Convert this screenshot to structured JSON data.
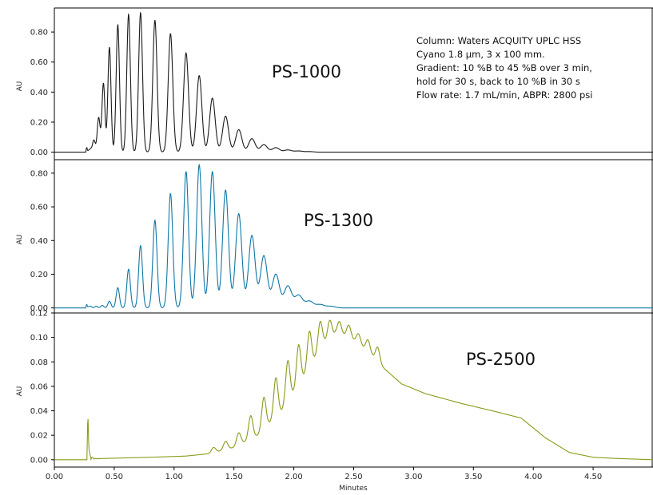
{
  "chart_data": [
    {
      "type": "line",
      "label": "PS-1000",
      "ylabel": "AU",
      "ylim": [
        -0.05,
        0.96
      ],
      "yticks": [
        0,
        0.2,
        0.4,
        0.6,
        0.8
      ],
      "ytick_labels": [
        "0.00",
        "0.20",
        "0.40",
        "0.60",
        "0.80"
      ],
      "color": "#1a1a1a",
      "injection_spike": {
        "x": 0.27,
        "y": 0.03
      },
      "peaks": [
        {
          "x": 0.3,
          "y": 0.02
        },
        {
          "x": 0.33,
          "y": 0.08
        },
        {
          "x": 0.37,
          "y": 0.23
        },
        {
          "x": 0.41,
          "y": 0.46
        },
        {
          "x": 0.46,
          "y": 0.7
        },
        {
          "x": 0.53,
          "y": 0.85
        },
        {
          "x": 0.62,
          "y": 0.92
        },
        {
          "x": 0.72,
          "y": 0.93
        },
        {
          "x": 0.84,
          "y": 0.88
        },
        {
          "x": 0.97,
          "y": 0.79
        },
        {
          "x": 1.1,
          "y": 0.66
        },
        {
          "x": 1.21,
          "y": 0.51
        },
        {
          "x": 1.32,
          "y": 0.36
        },
        {
          "x": 1.43,
          "y": 0.24
        },
        {
          "x": 1.54,
          "y": 0.15
        },
        {
          "x": 1.65,
          "y": 0.09
        },
        {
          "x": 1.75,
          "y": 0.05
        },
        {
          "x": 1.85,
          "y": 0.03
        },
        {
          "x": 1.95,
          "y": 0.015
        },
        {
          "x": 2.04,
          "y": 0.008
        },
        {
          "x": 2.13,
          "y": 0.004
        }
      ],
      "notes": [
        "Column: Waters ACQUITY UPLC HSS",
        "Cyano 1.8 µm, 3 x 100 mm.",
        "Gradient: 10 %B to 45 %B over 3 min,",
        "hold for 30 s, back to 10 %B in 30 s",
        "Flow rate: 1.7 mL/min, ABPR: 2800 psi"
      ]
    },
    {
      "type": "line",
      "label": "PS-1300",
      "ylabel": "AU",
      "ylim": [
        -0.03,
        0.88
      ],
      "yticks": [
        0,
        0.2,
        0.4,
        0.6,
        0.8
      ],
      "ytick_labels": [
        "0.00",
        "0.20",
        "0.40",
        "0.60",
        "0.80"
      ],
      "color": "#0e77a6",
      "injection_spike": {
        "x": 0.27,
        "y": 0.02
      },
      "peaks": [
        {
          "x": 0.3,
          "y": 0.01
        },
        {
          "x": 0.35,
          "y": 0.01
        },
        {
          "x": 0.4,
          "y": 0.015
        },
        {
          "x": 0.46,
          "y": 0.04
        },
        {
          "x": 0.53,
          "y": 0.12
        },
        {
          "x": 0.62,
          "y": 0.23
        },
        {
          "x": 0.72,
          "y": 0.37
        },
        {
          "x": 0.84,
          "y": 0.52
        },
        {
          "x": 0.97,
          "y": 0.68
        },
        {
          "x": 1.1,
          "y": 0.81
        },
        {
          "x": 1.21,
          "y": 0.85
        },
        {
          "x": 1.32,
          "y": 0.81
        },
        {
          "x": 1.43,
          "y": 0.7
        },
        {
          "x": 1.54,
          "y": 0.56
        },
        {
          "x": 1.65,
          "y": 0.43
        },
        {
          "x": 1.75,
          "y": 0.31
        },
        {
          "x": 1.85,
          "y": 0.2
        },
        {
          "x": 1.95,
          "y": 0.13
        },
        {
          "x": 2.04,
          "y": 0.075
        },
        {
          "x": 2.13,
          "y": 0.04
        },
        {
          "x": 2.22,
          "y": 0.02
        },
        {
          "x": 2.31,
          "y": 0.01
        }
      ]
    },
    {
      "type": "line",
      "label": "PS-2500",
      "ylabel": "AU",
      "xlabel": "Minutes",
      "ylim": [
        -0.006,
        0.12
      ],
      "xlim": [
        0,
        5
      ],
      "yticks": [
        0,
        0.02,
        0.04,
        0.06,
        0.08,
        0.1,
        0.12
      ],
      "ytick_labels": [
        "0.00",
        "0.02",
        "0.04",
        "0.06",
        "0.08",
        "0.10",
        "0.12"
      ],
      "xticks": [
        0,
        0.5,
        1,
        1.5,
        2,
        2.5,
        3,
        3.5,
        4,
        4.5
      ],
      "xtick_labels": [
        "0.00",
        "0.50",
        "1.00",
        "1.50",
        "2.00",
        "2.50",
        "3.00",
        "3.50",
        "4.00",
        "4.50"
      ],
      "color": "#8b9a17",
      "injection_spike": {
        "x": 0.28,
        "y": 0.033
      },
      "envelope": [
        {
          "x": 0.0,
          "y": 0.0
        },
        {
          "x": 0.27,
          "y": 0.0
        },
        {
          "x": 0.4,
          "y": 0.001
        },
        {
          "x": 0.8,
          "y": 0.002
        },
        {
          "x": 1.1,
          "y": 0.003
        },
        {
          "x": 1.3,
          "y": 0.005
        },
        {
          "x": 1.5,
          "y": 0.01
        },
        {
          "x": 1.7,
          "y": 0.02
        },
        {
          "x": 1.9,
          "y": 0.04
        },
        {
          "x": 2.1,
          "y": 0.07
        },
        {
          "x": 2.25,
          "y": 0.095
        },
        {
          "x": 2.35,
          "y": 0.103
        },
        {
          "x": 2.45,
          "y": 0.101
        },
        {
          "x": 2.6,
          "y": 0.09
        },
        {
          "x": 2.75,
          "y": 0.075
        },
        {
          "x": 2.9,
          "y": 0.062
        },
        {
          "x": 3.1,
          "y": 0.054
        },
        {
          "x": 3.4,
          "y": 0.046
        },
        {
          "x": 3.7,
          "y": 0.039
        },
        {
          "x": 3.9,
          "y": 0.034
        },
        {
          "x": 4.0,
          "y": 0.026
        },
        {
          "x": 4.1,
          "y": 0.018
        },
        {
          "x": 4.3,
          "y": 0.006
        },
        {
          "x": 4.5,
          "y": 0.002
        },
        {
          "x": 4.7,
          "y": 0.001
        },
        {
          "x": 5.0,
          "y": 0.0
        }
      ],
      "oscillation_peaks": [
        {
          "x": 1.33,
          "y": 0.01
        },
        {
          "x": 1.43,
          "y": 0.015
        },
        {
          "x": 1.54,
          "y": 0.022
        },
        {
          "x": 1.64,
          "y": 0.036
        },
        {
          "x": 1.75,
          "y": 0.051
        },
        {
          "x": 1.85,
          "y": 0.067
        },
        {
          "x": 1.95,
          "y": 0.081
        },
        {
          "x": 2.04,
          "y": 0.094
        },
        {
          "x": 2.13,
          "y": 0.105
        },
        {
          "x": 2.22,
          "y": 0.113
        },
        {
          "x": 2.3,
          "y": 0.114
        },
        {
          "x": 2.38,
          "y": 0.113
        },
        {
          "x": 2.46,
          "y": 0.11
        },
        {
          "x": 2.54,
          "y": 0.103
        },
        {
          "x": 2.62,
          "y": 0.098
        },
        {
          "x": 2.7,
          "y": 0.092
        }
      ]
    }
  ]
}
